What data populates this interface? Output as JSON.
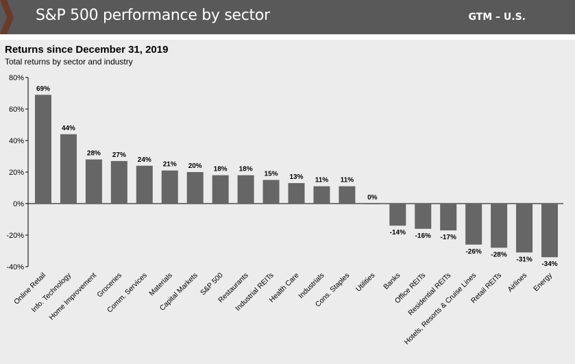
{
  "header": {
    "title": "S&P 500 performance by sector",
    "tag": "GTM – U.S.",
    "bar_color": "#595959",
    "chevron_color": "#6b3a2a"
  },
  "chart_data": {
    "type": "bar",
    "title": "Returns since December 31, 2019",
    "subtitle": "Total returns by sector and industry",
    "categories": [
      "Online Retail",
      "Info. Technology",
      "Home Improvement",
      "Groceries",
      "Comm. Services",
      "Materials",
      "Capital Markets",
      "S&P 500",
      "Restaurants",
      "Industrial REITs",
      "Health Care",
      "Industrials",
      "Cons. Staples",
      "Utilities",
      "Banks",
      "Office REITs",
      "Residential REITs",
      "Hotels, Resorts & Cruise Lines",
      "Retail REITs",
      "Airlines",
      "Energy"
    ],
    "values": [
      69,
      44,
      28,
      27,
      24,
      21,
      20,
      18,
      18,
      15,
      13,
      11,
      11,
      0,
      -14,
      -16,
      -17,
      -26,
      -28,
      -31,
      -34
    ],
    "value_labels": [
      "69%",
      "44%",
      "28%",
      "27%",
      "24%",
      "21%",
      "20%",
      "18%",
      "18%",
      "15%",
      "13%",
      "11%",
      "11%",
      "0%",
      "-14%",
      "-16%",
      "-17%",
      "-26%",
      "-28%",
      "-31%",
      "-34%"
    ],
    "ylim": [
      -40,
      80
    ],
    "yticks": [
      -40,
      -20,
      0,
      20,
      40,
      60,
      80
    ],
    "ytick_labels": [
      "-40%",
      "-20%",
      "0%",
      "20%",
      "40%",
      "60%",
      "80%"
    ],
    "xlabel": "",
    "ylabel": "",
    "grid": false,
    "bar_color": "#666666"
  }
}
